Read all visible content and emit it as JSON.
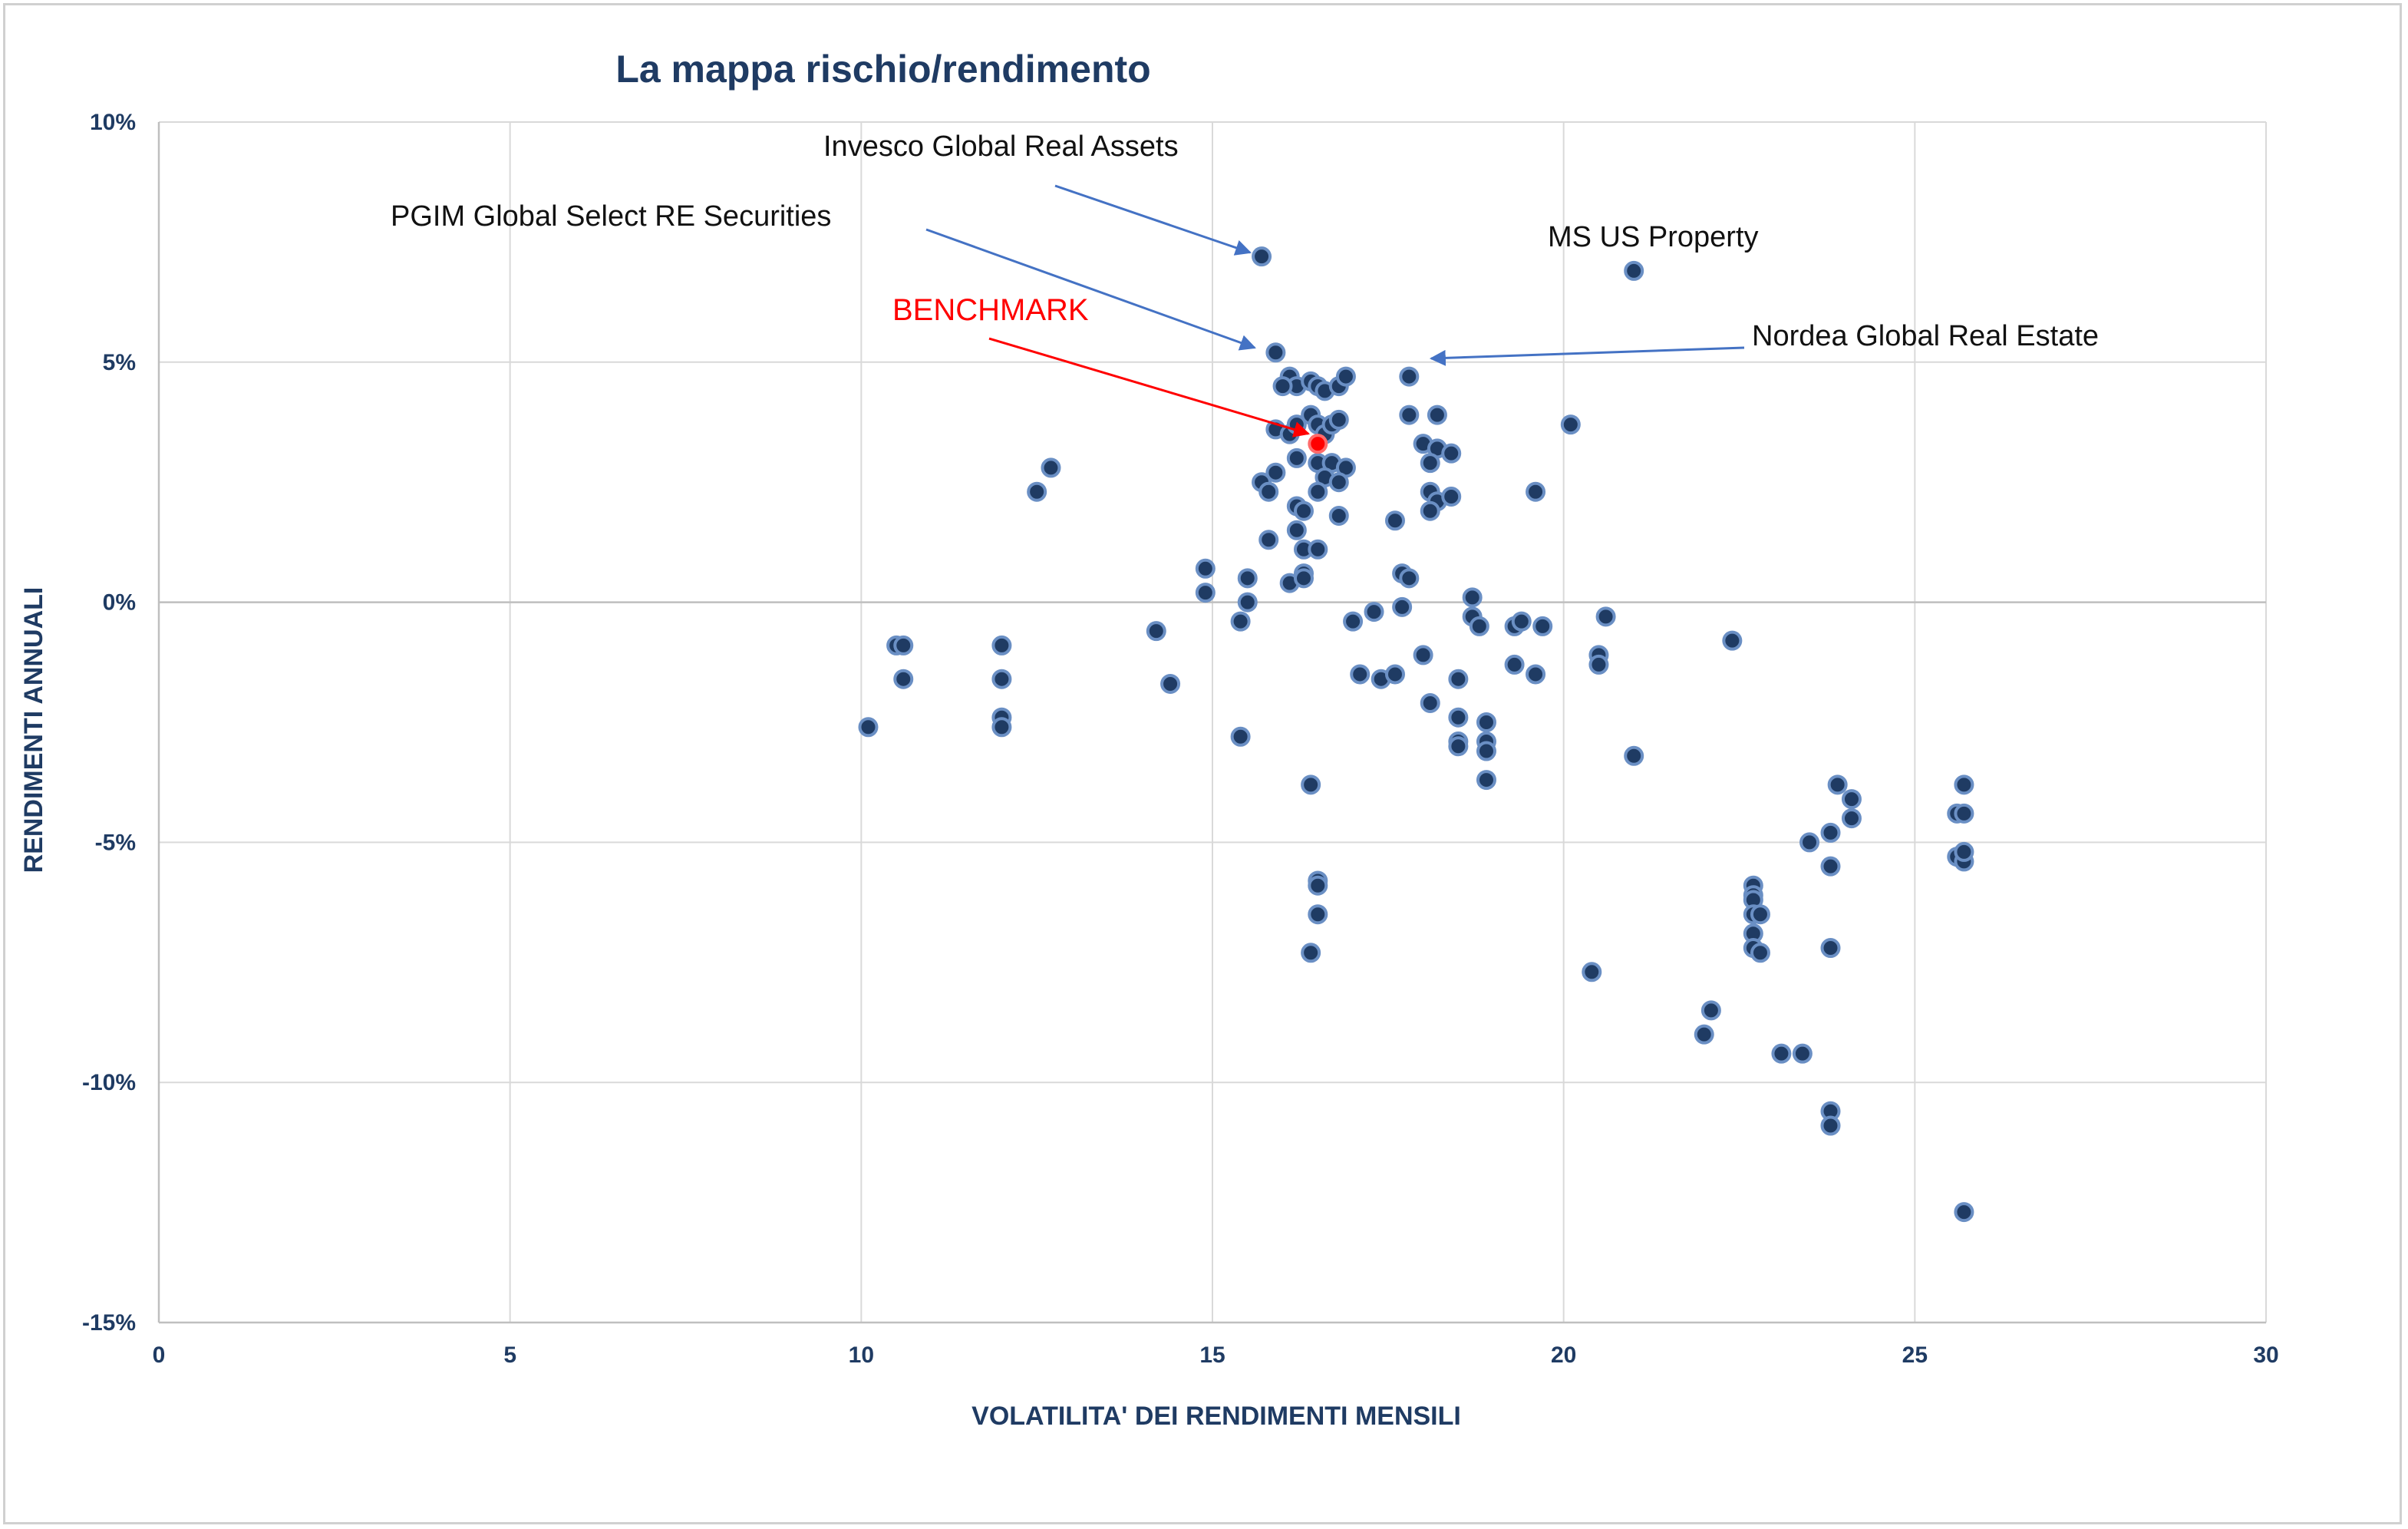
{
  "chart_data": {
    "type": "scatter",
    "title": "La mappa rischio/rendimento",
    "xlabel": "VOLATILITA' DEI RENDIMENTI MENSILI",
    "ylabel": "RENDIMENTI ANNUALI",
    "xlim": [
      0,
      30
    ],
    "ylim": [
      -15,
      10
    ],
    "x_ticks": [
      "0",
      "5",
      "10",
      "15",
      "20",
      "25",
      "30"
    ],
    "y_ticks": [
      "10%",
      "5%",
      "0%",
      "-5%",
      "-10%",
      "-15%"
    ],
    "grid": true,
    "legend": "none",
    "colors": {
      "point": "#1f3b63",
      "point_edge": "#6a8fc4",
      "benchmark": "#ff0000",
      "arrow": "#4472c4",
      "benchmark_arrow": "#ff0000",
      "grid": "#d9d9d9"
    },
    "annotations": [
      {
        "text": "Invesco Global Real Assets",
        "target": [
          15.7,
          7.2
        ],
        "style": "black"
      },
      {
        "text": "PGIM Global Select RE Securities",
        "target": [
          15.8,
          5.3
        ],
        "style": "black"
      },
      {
        "text": "BENCHMARK",
        "target": [
          16.2,
          3.5
        ],
        "style": "red"
      },
      {
        "text": "MS US Property",
        "target": [
          21.0,
          6.9
        ],
        "style": "black"
      },
      {
        "text": "Nordea Global Real Estate",
        "target": [
          17.8,
          5.1
        ],
        "style": "black"
      }
    ],
    "benchmark": {
      "x": 16.5,
      "y": 3.3
    },
    "points": [
      [
        15.7,
        7.2
      ],
      [
        21.0,
        6.9
      ],
      [
        15.9,
        5.2
      ],
      [
        17.8,
        4.7
      ],
      [
        16.1,
        4.7
      ],
      [
        16.2,
        4.5
      ],
      [
        16.0,
        4.5
      ],
      [
        16.4,
        4.6
      ],
      [
        16.5,
        4.5
      ],
      [
        16.6,
        4.4
      ],
      [
        16.8,
        4.5
      ],
      [
        16.9,
        4.7
      ],
      [
        17.8,
        3.9
      ],
      [
        18.2,
        3.9
      ],
      [
        20.1,
        3.7
      ],
      [
        15.9,
        3.6
      ],
      [
        16.1,
        3.5
      ],
      [
        16.2,
        3.7
      ],
      [
        16.4,
        3.9
      ],
      [
        16.5,
        3.7
      ],
      [
        16.6,
        3.5
      ],
      [
        16.7,
        3.7
      ],
      [
        16.8,
        3.8
      ],
      [
        18.0,
        3.3
      ],
      [
        18.2,
        3.2
      ],
      [
        18.4,
        3.1
      ],
      [
        16.2,
        3.0
      ],
      [
        16.5,
        2.9
      ],
      [
        16.7,
        2.9
      ],
      [
        16.9,
        2.8
      ],
      [
        16.6,
        2.6
      ],
      [
        18.1,
        2.9
      ],
      [
        15.9,
        2.7
      ],
      [
        15.7,
        2.5
      ],
      [
        15.8,
        2.3
      ],
      [
        16.2,
        2.0
      ],
      [
        16.3,
        1.9
      ],
      [
        16.5,
        2.3
      ],
      [
        16.8,
        2.5
      ],
      [
        12.7,
        2.8
      ],
      [
        12.5,
        2.3
      ],
      [
        18.1,
        2.3
      ],
      [
        18.2,
        2.1
      ],
      [
        18.4,
        2.2
      ],
      [
        18.1,
        1.9
      ],
      [
        19.6,
        2.3
      ],
      [
        16.8,
        1.8
      ],
      [
        15.8,
        1.3
      ],
      [
        16.2,
        1.5
      ],
      [
        16.3,
        1.1
      ],
      [
        16.5,
        1.1
      ],
      [
        17.6,
        1.7
      ],
      [
        14.9,
        0.7
      ],
      [
        15.5,
        0.5
      ],
      [
        16.1,
        0.4
      ],
      [
        16.3,
        0.6
      ],
      [
        16.3,
        0.5
      ],
      [
        14.9,
        0.2
      ],
      [
        17.7,
        0.6
      ],
      [
        17.8,
        0.5
      ],
      [
        18.7,
        0.1
      ],
      [
        15.5,
        0.0
      ],
      [
        15.4,
        -0.4
      ],
      [
        17.7,
        -0.1
      ],
      [
        17.3,
        -0.2
      ],
      [
        17.0,
        -0.4
      ],
      [
        18.7,
        -0.3
      ],
      [
        18.8,
        -0.5
      ],
      [
        19.3,
        -0.5
      ],
      [
        19.4,
        -0.4
      ],
      [
        19.7,
        -0.5
      ],
      [
        20.6,
        -0.3
      ],
      [
        22.4,
        -0.8
      ],
      [
        10.5,
        -0.9
      ],
      [
        10.6,
        -0.9
      ],
      [
        12.0,
        -0.9
      ],
      [
        14.2,
        -0.6
      ],
      [
        10.6,
        -1.6
      ],
      [
        12.0,
        -1.6
      ],
      [
        14.4,
        -1.7
      ],
      [
        17.1,
        -1.5
      ],
      [
        17.4,
        -1.6
      ],
      [
        17.6,
        -1.5
      ],
      [
        18.0,
        -1.1
      ],
      [
        18.5,
        -1.6
      ],
      [
        19.3,
        -1.3
      ],
      [
        19.6,
        -1.5
      ],
      [
        20.5,
        -1.1
      ],
      [
        20.5,
        -1.3
      ],
      [
        18.1,
        -2.1
      ],
      [
        18.5,
        -2.4
      ],
      [
        18.9,
        -2.5
      ],
      [
        12.0,
        -2.4
      ],
      [
        12.0,
        -2.6
      ],
      [
        10.1,
        -2.6
      ],
      [
        15.4,
        -2.8
      ],
      [
        18.5,
        -2.9
      ],
      [
        18.5,
        -3.0
      ],
      [
        18.9,
        -2.9
      ],
      [
        18.9,
        -3.1
      ],
      [
        21.0,
        -3.2
      ],
      [
        18.9,
        -3.7
      ],
      [
        16.4,
        -3.8
      ],
      [
        23.9,
        -3.8
      ],
      [
        25.7,
        -3.8
      ],
      [
        24.1,
        -4.1
      ],
      [
        24.1,
        -4.5
      ],
      [
        25.6,
        -4.4
      ],
      [
        25.7,
        -4.4
      ],
      [
        23.8,
        -4.8
      ],
      [
        23.5,
        -5.0
      ],
      [
        23.8,
        -5.5
      ],
      [
        25.6,
        -5.3
      ],
      [
        25.7,
        -5.4
      ],
      [
        25.7,
        -5.2
      ],
      [
        16.5,
        -5.8
      ],
      [
        16.5,
        -5.9
      ],
      [
        22.7,
        -5.9
      ],
      [
        22.7,
        -6.1
      ],
      [
        22.7,
        -6.2
      ],
      [
        22.7,
        -6.5
      ],
      [
        22.8,
        -6.5
      ],
      [
        22.7,
        -6.9
      ],
      [
        16.5,
        -6.5
      ],
      [
        16.4,
        -7.3
      ],
      [
        22.7,
        -7.2
      ],
      [
        22.8,
        -7.3
      ],
      [
        23.8,
        -7.2
      ],
      [
        20.4,
        -7.7
      ],
      [
        22.1,
        -8.5
      ],
      [
        22.0,
        -9.0
      ],
      [
        23.1,
        -9.4
      ],
      [
        23.4,
        -9.4
      ],
      [
        23.8,
        -10.6
      ],
      [
        23.8,
        -10.9
      ],
      [
        25.7,
        -12.7
      ]
    ]
  }
}
